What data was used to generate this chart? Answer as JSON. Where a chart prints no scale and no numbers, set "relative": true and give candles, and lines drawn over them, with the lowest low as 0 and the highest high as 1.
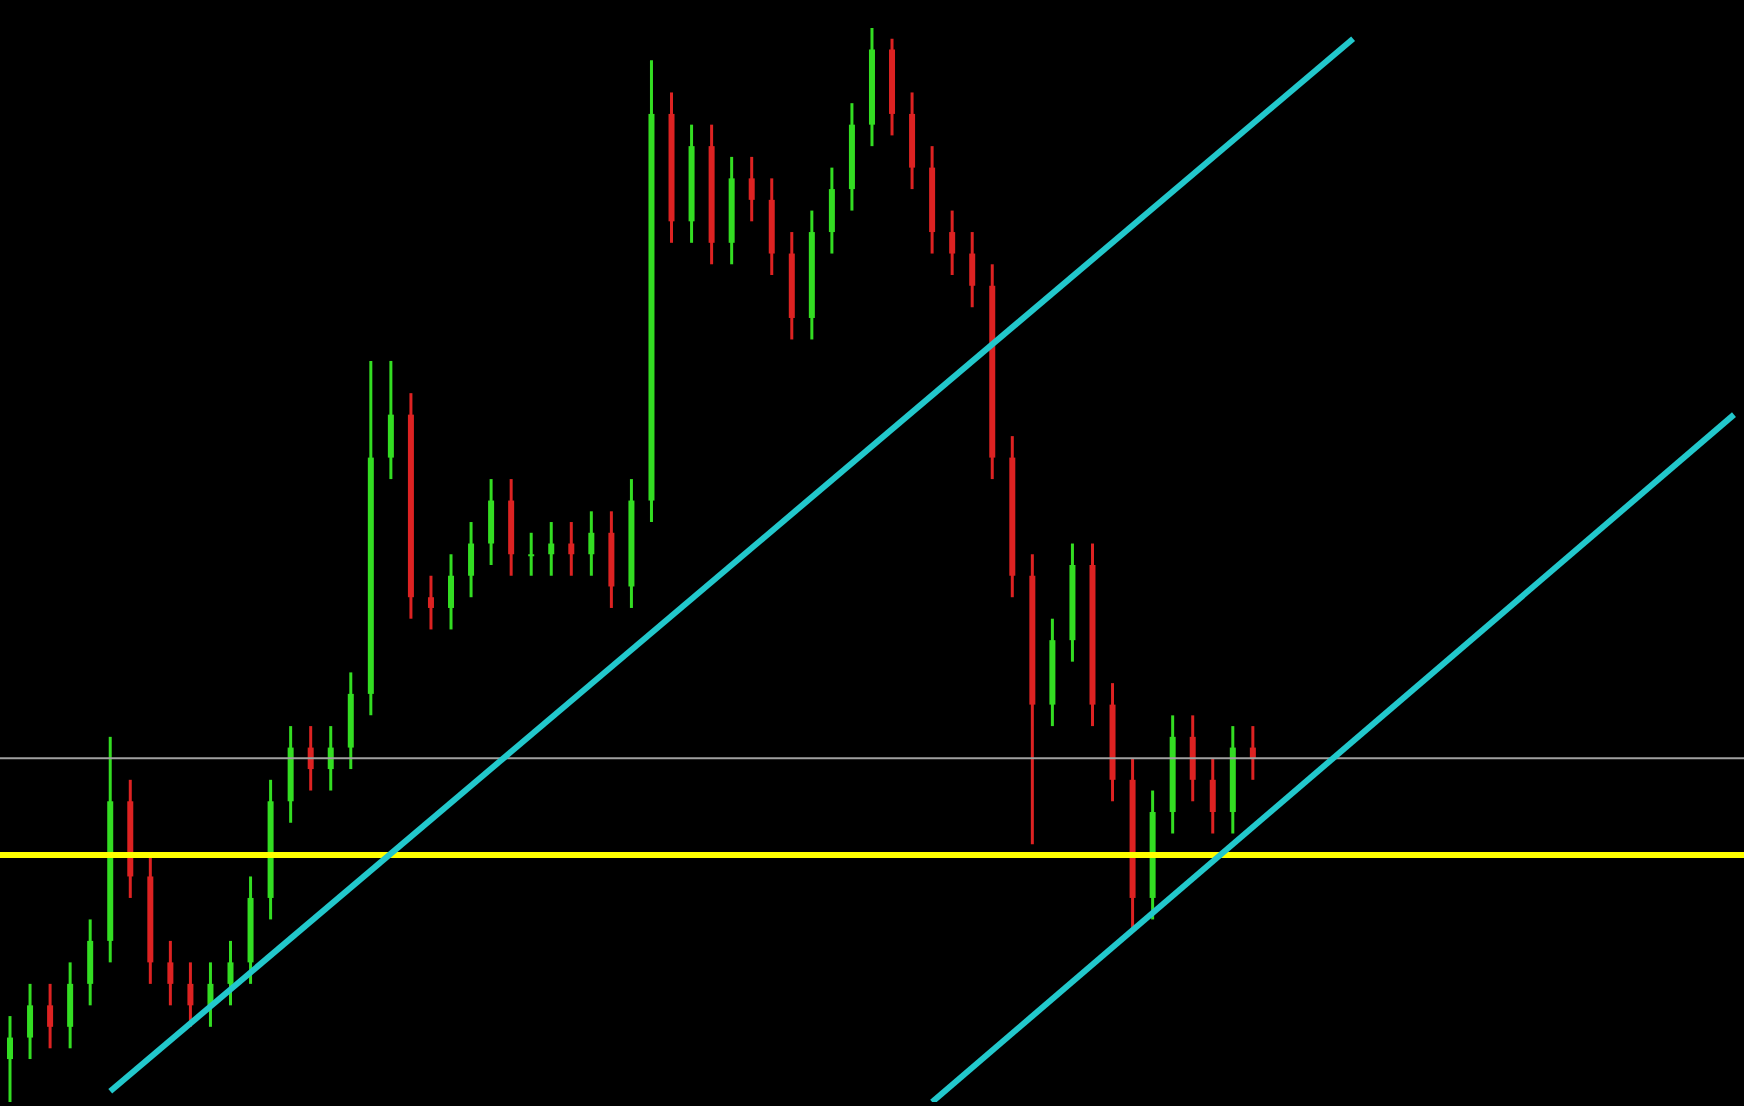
{
  "chart_data": {
    "type": "candlestick",
    "relative": true,
    "categories": [
      null,
      null,
      null,
      null,
      null,
      null,
      null,
      null,
      null,
      null,
      null,
      null,
      null,
      null,
      null,
      null,
      null,
      null,
      null,
      null,
      null,
      null,
      null,
      null,
      null,
      null,
      null,
      null,
      null,
      null,
      null,
      null,
      null,
      null,
      null,
      null,
      null,
      null,
      null,
      null,
      null,
      null,
      null,
      null,
      null,
      null,
      null,
      null,
      null,
      null,
      null,
      null,
      null,
      null,
      null,
      null,
      null,
      null,
      null,
      null,
      null,
      null,
      null,
      null,
      null,
      null,
      null,
      null,
      null,
      null,
      null,
      null,
      null,
      null,
      null,
      null,
      null,
      null,
      null,
      null,
      null,
      null,
      null,
      null,
      null,
      null,
      null
    ],
    "ohlc": [
      [
        0.04,
        0.08,
        0,
        0.06
      ],
      [
        0.06,
        0.11,
        0.04,
        0.09
      ],
      [
        0.09,
        0.11,
        0.05,
        0.07
      ],
      [
        0.07,
        0.13,
        0.05,
        0.11
      ],
      [
        0.11,
        0.17,
        0.09,
        0.15
      ],
      [
        0.15,
        0.34,
        0.13,
        0.28
      ],
      [
        0.28,
        0.3,
        0.19,
        0.21
      ],
      [
        0.21,
        0.23,
        0.11,
        0.13
      ],
      [
        0.13,
        0.15,
        0.09,
        0.11
      ],
      [
        0.11,
        0.13,
        0.07,
        0.09
      ],
      [
        0.09,
        0.13,
        0.07,
        0.11
      ],
      [
        0.11,
        0.15,
        0.09,
        0.13
      ],
      [
        0.13,
        0.21,
        0.11,
        0.19
      ],
      [
        0.19,
        0.3,
        0.17,
        0.28
      ],
      [
        0.28,
        0.35,
        0.26,
        0.33
      ],
      [
        0.33,
        0.35,
        0.29,
        0.31
      ],
      [
        0.31,
        0.35,
        0.29,
        0.33
      ],
      [
        0.33,
        0.4,
        0.31,
        0.38
      ],
      [
        0.38,
        0.69,
        0.36,
        0.6
      ],
      [
        0.6,
        0.69,
        0.58,
        0.64
      ],
      [
        0.64,
        0.66,
        0.45,
        0.47
      ],
      [
        0.47,
        0.49,
        0.44,
        0.46
      ],
      [
        0.46,
        0.51,
        0.44,
        0.49
      ],
      [
        0.49,
        0.54,
        0.47,
        0.52
      ],
      [
        0.52,
        0.58,
        0.5,
        0.56
      ],
      [
        0.56,
        0.58,
        0.49,
        0.51
      ],
      [
        0.51,
        0.53,
        0.49,
        0.51
      ],
      [
        0.51,
        0.54,
        0.49,
        0.52
      ],
      [
        0.52,
        0.54,
        0.49,
        0.51
      ],
      [
        0.51,
        0.55,
        0.49,
        0.53
      ],
      [
        0.53,
        0.55,
        0.46,
        0.48
      ],
      [
        0.48,
        0.58,
        0.46,
        0.56
      ],
      [
        0.56,
        0.97,
        0.54,
        0.92
      ],
      [
        0.92,
        0.94,
        0.8,
        0.82
      ],
      [
        0.82,
        0.91,
        0.8,
        0.89
      ],
      [
        0.89,
        0.91,
        0.78,
        0.8
      ],
      [
        0.8,
        0.88,
        0.78,
        0.86
      ],
      [
        0.86,
        0.88,
        0.82,
        0.84
      ],
      [
        0.84,
        0.86,
        0.77,
        0.79
      ],
      [
        0.79,
        0.81,
        0.71,
        0.73
      ],
      [
        0.73,
        0.83,
        0.71,
        0.81
      ],
      [
        0.81,
        0.87,
        0.79,
        0.85
      ],
      [
        0.85,
        0.93,
        0.83,
        0.91
      ],
      [
        0.91,
        1,
        0.89,
        0.98
      ],
      [
        0.98,
        0.99,
        0.9,
        0.92
      ],
      [
        0.92,
        0.94,
        0.85,
        0.87
      ],
      [
        0.87,
        0.89,
        0.79,
        0.81
      ],
      [
        0.81,
        0.83,
        0.77,
        0.79
      ],
      [
        0.79,
        0.81,
        0.74,
        0.76
      ],
      [
        0.76,
        0.78,
        0.58,
        0.6
      ],
      [
        0.6,
        0.62,
        0.47,
        0.49
      ],
      [
        0.49,
        0.51,
        0.24,
        0.37
      ],
      [
        0.37,
        0.45,
        0.35,
        0.43
      ],
      [
        0.43,
        0.52,
        0.41,
        0.5
      ],
      [
        0.5,
        0.52,
        0.35,
        0.37
      ],
      [
        0.37,
        0.39,
        0.28,
        0.3
      ],
      [
        0.3,
        0.32,
        0.16,
        0.19
      ],
      [
        0.19,
        0.29,
        0.17,
        0.27
      ],
      [
        0.27,
        0.36,
        0.25,
        0.34
      ],
      [
        0.34,
        0.36,
        0.28,
        0.3
      ],
      [
        0.3,
        0.32,
        0.25,
        0.27
      ],
      [
        0.27,
        0.35,
        0.25,
        0.33
      ],
      [
        0.33,
        0.35,
        0.3,
        0.32
      ],
      null,
      null,
      null,
      null,
      null,
      null,
      null,
      null,
      null,
      null,
      null,
      null,
      null,
      null,
      null,
      null,
      null,
      null,
      null,
      null,
      null,
      null,
      null,
      null
    ],
    "colors": [
      "#33dd22",
      "#33dd22",
      "#dd2222",
      "#33dd22",
      "#33dd22",
      "#33dd22",
      "#dd2222",
      "#dd2222",
      "#dd2222",
      "#dd2222",
      "#33dd22",
      "#33dd22",
      "#33dd22",
      "#33dd22",
      "#33dd22",
      "#dd2222",
      "#33dd22",
      "#33dd22",
      "#33dd22",
      "#33dd22",
      "#dd2222",
      "#dd2222",
      "#33dd22",
      "#33dd22",
      "#33dd22",
      "#dd2222",
      "#33dd22",
      "#33dd22",
      "#dd2222",
      "#33dd22",
      "#dd2222",
      "#33dd22",
      "#33dd22",
      "#dd2222",
      "#33dd22",
      "#dd2222",
      "#33dd22",
      "#dd2222",
      "#dd2222",
      "#dd2222",
      "#33dd22",
      "#33dd22",
      "#33dd22",
      "#33dd22",
      "#dd2222",
      "#dd2222",
      "#dd2222",
      "#dd2222",
      "#dd2222",
      "#dd2222",
      "#dd2222",
      "#dd2222",
      "#33dd22",
      "#33dd22",
      "#dd2222",
      "#dd2222",
      "#dd2222",
      "#33dd22",
      "#33dd22",
      "#dd2222",
      "#dd2222",
      "#33dd22",
      "#dd2222",
      null,
      null,
      null,
      null,
      null,
      null,
      null,
      null,
      null,
      null,
      null,
      null,
      null,
      null,
      null,
      null,
      null,
      null,
      null,
      null,
      null,
      null,
      null,
      null
    ],
    "series": [
      {
        "type": "line",
        "color": "#22c8cc",
        "values": [
          null,
          null,
          null,
          null,
          null,
          0.01,
          null,
          null,
          null,
          null,
          null,
          null,
          null,
          null,
          null,
          null,
          null,
          null,
          null,
          null,
          null,
          null,
          null,
          null,
          null,
          null,
          null,
          null,
          null,
          null,
          null,
          null,
          null,
          null,
          null,
          null,
          null,
          null,
          null,
          null,
          null,
          null,
          null,
          null,
          null,
          null,
          null,
          null,
          null,
          null,
          null,
          null,
          null,
          null,
          null,
          null,
          null,
          null,
          null,
          null,
          null,
          null,
          null,
          null,
          null,
          null,
          null,
          0.99,
          null,
          null,
          null,
          null,
          null,
          null,
          null,
          null,
          null,
          null,
          null,
          null,
          null,
          null,
          null,
          null,
          null,
          null,
          null
        ]
      },
      {
        "type": "line",
        "color": "#22c8cc",
        "values": [
          null,
          null,
          null,
          null,
          null,
          null,
          null,
          null,
          null,
          null,
          null,
          null,
          null,
          null,
          null,
          null,
          null,
          null,
          null,
          null,
          null,
          null,
          null,
          null,
          null,
          null,
          null,
          null,
          null,
          null,
          null,
          null,
          null,
          null,
          null,
          null,
          null,
          null,
          null,
          null,
          null,
          null,
          null,
          null,
          null,
          null,
          0,
          null,
          null,
          null,
          null,
          null,
          null,
          null,
          null,
          null,
          null,
          null,
          null,
          null,
          null,
          null,
          null,
          null,
          null,
          null,
          null,
          null,
          null,
          null,
          null,
          null,
          null,
          null,
          null,
          null,
          null,
          null,
          null,
          null,
          null,
          null,
          null,
          null,
          null,
          null,
          0.64
        ]
      }
    ],
    "ref_lines": [
      {
        "axis": "y",
        "value": 0.32,
        "color": "#a0a0a0"
      },
      {
        "axis": "y",
        "value": 0.23,
        "color": "#ffff00"
      }
    ]
  }
}
